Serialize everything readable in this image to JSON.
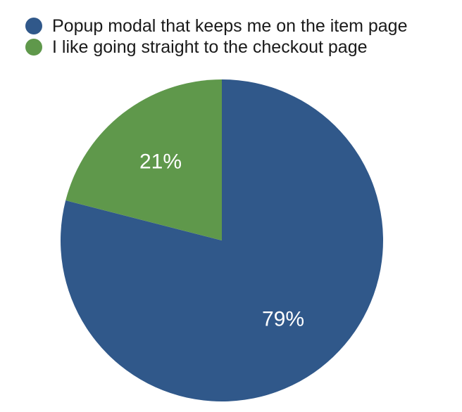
{
  "chart_data": {
    "type": "pie",
    "legend_position": "top-left",
    "slices": [
      {
        "label": "Popup modal that keeps me on the item page",
        "value": 79,
        "display": "79%",
        "color": "#30588a"
      },
      {
        "label": "I like going straight to the checkout page",
        "value": 21,
        "display": "21%",
        "color": "#5f984b"
      }
    ]
  }
}
